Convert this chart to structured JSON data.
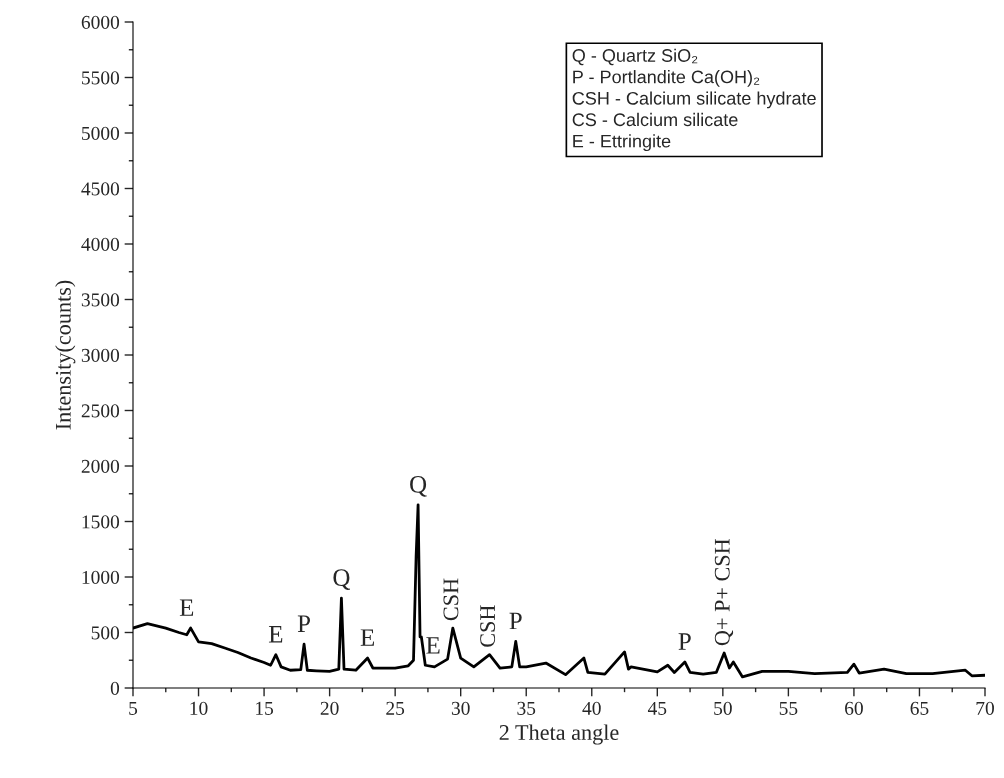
{
  "chart_data": {
    "type": "line",
    "xlabel": "2 Theta angle",
    "ylabel": "Intensity(counts)",
    "x": [
      5,
      6.1,
      7.5,
      8.5,
      9.1,
      9.4,
      10,
      11,
      12,
      13,
      14,
      15,
      15.5,
      15.9,
      16.3,
      17,
      17.8,
      18.05,
      18.3,
      19,
      20,
      20.7,
      20.9,
      21.1,
      22,
      22.9,
      23.3,
      25,
      26,
      26.4,
      26.6,
      26.75,
      26.9,
      27.0,
      27.3,
      28,
      29.0,
      29.4,
      30,
      31,
      32.2,
      33,
      33.9,
      34.2,
      34.5,
      35,
      36.5,
      38,
      39.4,
      39.7,
      41,
      42.5,
      42.8,
      43,
      45,
      45.8,
      46.3,
      47.1,
      47.5,
      48.5,
      49.5,
      50.1,
      50.5,
      50.8,
      51.5,
      53,
      55,
      57,
      59.5,
      60,
      60.4,
      62.3,
      64,
      66,
      68.5,
      69,
      70
    ],
    "values": [
      540,
      580,
      540,
      500,
      480,
      540,
      415,
      400,
      360,
      320,
      270,
      230,
      205,
      300,
      190,
      160,
      165,
      395,
      160,
      155,
      150,
      170,
      810,
      170,
      160,
      270,
      180,
      180,
      200,
      250,
      1190,
      1650,
      460,
      460,
      205,
      190,
      260,
      540,
      270,
      190,
      300,
      180,
      190,
      420,
      190,
      190,
      225,
      120,
      270,
      140,
      125,
      325,
      170,
      190,
      145,
      205,
      140,
      235,
      140,
      125,
      140,
      315,
      180,
      235,
      100,
      150,
      150,
      130,
      140,
      215,
      135,
      170,
      130,
      130,
      160,
      110,
      115
    ],
    "color": "#000000",
    "xlim": [
      5,
      70
    ],
    "ylim": [
      0,
      6000
    ],
    "xticks": [
      5,
      10,
      15,
      20,
      25,
      30,
      35,
      40,
      45,
      50,
      55,
      60,
      65,
      70
    ],
    "yticks": [
      0,
      500,
      1000,
      1500,
      2000,
      2500,
      3000,
      3500,
      4000,
      4500,
      5000,
      5500,
      6000
    ],
    "grid": false,
    "legend": false,
    "annotations": [
      {
        "text": "E",
        "x": 9.1,
        "y": 540
      },
      {
        "text": "E",
        "x": 15.9,
        "y": 300
      },
      {
        "text": "P",
        "x": 18.05,
        "y": 395
      },
      {
        "text": "Q",
        "x": 20.9,
        "y": 810
      },
      {
        "text": "E",
        "x": 22.9,
        "y": 270
      },
      {
        "text": "Q",
        "x": 26.75,
        "y": 1650
      },
      {
        "text": "E",
        "x": 27.9,
        "y": 200
      },
      {
        "text": "CSH",
        "x": 29.4,
        "y": 540
      },
      {
        "text": "CSH",
        "x": 32.2,
        "y": 300
      },
      {
        "text": "P",
        "x": 34.2,
        "y": 420
      },
      {
        "text": "P",
        "x": 47.1,
        "y": 235
      },
      {
        "text": "Q+ P+ CSH",
        "x": 50.1,
        "y": 315
      },
      "Q - Quartz SiO₂",
      "P - Portlandite Ca(OH)₂",
      "CSH - Calcium silicate hydrate",
      "CS - Calcium silicate",
      "E - Ettringite"
    ]
  }
}
